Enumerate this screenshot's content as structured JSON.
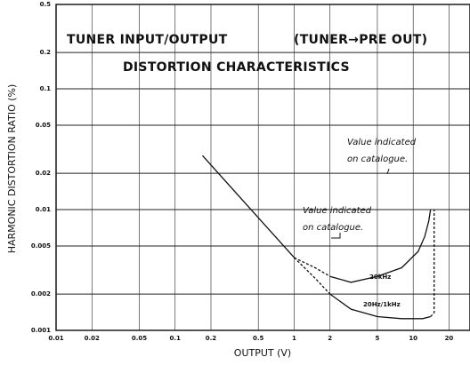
{
  "chart_data": {
    "type": "line",
    "title": [
      "TUNER INPUT/OUTPUT",
      "(TUNER→PRE OUT)",
      "DISTORTION CHARACTERISTICS"
    ],
    "xlabel": "OUTPUT (V)",
    "ylabel": "HARMONIC DISTORTION RATIO (%)",
    "xscale": "log",
    "yscale": "log",
    "grid": true,
    "xlim": [
      0.01,
      30
    ],
    "ylim": [
      0.001,
      0.5
    ],
    "xticks": [
      0.01,
      0.02,
      0.05,
      0.1,
      0.2,
      0.5,
      1,
      2,
      5,
      10,
      20
    ],
    "yticks": [
      0.5,
      0.2,
      0.1,
      0.05,
      0.02,
      0.01,
      0.005,
      0.002,
      0.001
    ],
    "series": [
      {
        "color": "#111",
        "x": [
          0.17,
          1
        ],
        "values": [
          0.028,
          0.004
        ]
      },
      {
        "color": "#111",
        "dashed": true,
        "x": [
          1,
          1.5,
          2
        ],
        "values": [
          0.004,
          0.0033,
          0.0028
        ]
      },
      {
        "name": "20kHz",
        "color": "#111",
        "x": [
          2,
          3,
          5,
          8,
          11,
          12.5,
          13.5,
          14
        ],
        "values": [
          0.0028,
          0.0025,
          0.0028,
          0.0033,
          0.0045,
          0.006,
          0.008,
          0.01
        ]
      },
      {
        "color": "#111",
        "dashed": true,
        "x": [
          1,
          1.5,
          2
        ],
        "values": [
          0.004,
          0.0027,
          0.002
        ]
      },
      {
        "name": "20Hz/1kHz",
        "color": "#111",
        "x": [
          2,
          3,
          5,
          8,
          12,
          14
        ],
        "values": [
          0.002,
          0.0015,
          0.0013,
          0.00125,
          0.00125,
          0.0013
        ]
      },
      {
        "color": "#111",
        "dashed": true,
        "x": [
          14,
          15,
          15
        ],
        "values": [
          0.0013,
          0.0014,
          0.01
        ]
      }
    ],
    "annotations": [
      {
        "lines": [
          "Value indicated",
          "on catalogue."
        ]
      },
      {
        "lines": [
          "Value indicated",
          "on catalogue."
        ]
      }
    ]
  }
}
